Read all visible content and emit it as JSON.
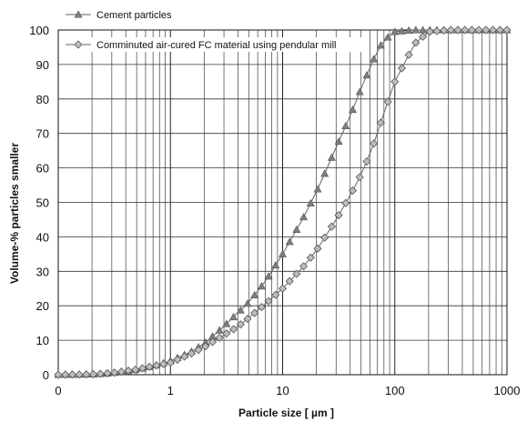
{
  "chart_data": {
    "type": "line",
    "xlabel": "Particle size  [ µm ]",
    "ylabel": "Volume-% particles smaller",
    "x_scale": "log",
    "xlim": [
      0.1,
      1000
    ],
    "ylim": [
      0,
      100
    ],
    "x_tick_labels": [
      "0",
      "1",
      "10",
      "100",
      "1000"
    ],
    "x_tick_values": [
      0.1,
      1,
      10,
      100,
      1000
    ],
    "y_ticks": [
      0,
      10,
      20,
      30,
      40,
      50,
      60,
      70,
      80,
      90,
      100
    ],
    "grid": true,
    "legend_position": "top-left",
    "series": [
      {
        "name": "Cement particles",
        "marker": "triangle",
        "color": "#7f7f7f",
        "x": [
          0.1,
          0.2,
          0.3,
          0.5,
          0.7,
          1,
          1.5,
          2,
          3,
          4,
          5,
          7,
          10,
          15,
          20,
          25,
          30,
          40,
          50,
          60,
          70,
          80,
          100,
          150,
          200,
          300,
          500,
          1000
        ],
        "y": [
          0,
          0.1,
          0.5,
          1.5,
          2.5,
          4,
          6.5,
          9,
          14,
          18,
          21,
          27,
          35,
          45,
          53,
          60,
          66,
          75,
          83,
          89,
          94,
          97,
          99.5,
          100,
          100,
          100,
          100,
          100
        ]
      },
      {
        "name": "Comminuted air-cured FC material using pendular mill",
        "marker": "diamond",
        "color": "#7f7f7f",
        "x": [
          0.1,
          0.2,
          0.3,
          0.5,
          0.7,
          1,
          1.5,
          2,
          3,
          4,
          5,
          7,
          10,
          15,
          20,
          30,
          40,
          50,
          60,
          70,
          80,
          100,
          150,
          200,
          300,
          500,
          1000
        ],
        "y": [
          0,
          0.1,
          0.5,
          1.5,
          2.5,
          3.5,
          6,
          8,
          11.5,
          14,
          16.5,
          20.5,
          25,
          31,
          36,
          45,
          52,
          58,
          64,
          70,
          76,
          85,
          96,
          99.5,
          100,
          100,
          100
        ]
      }
    ]
  }
}
